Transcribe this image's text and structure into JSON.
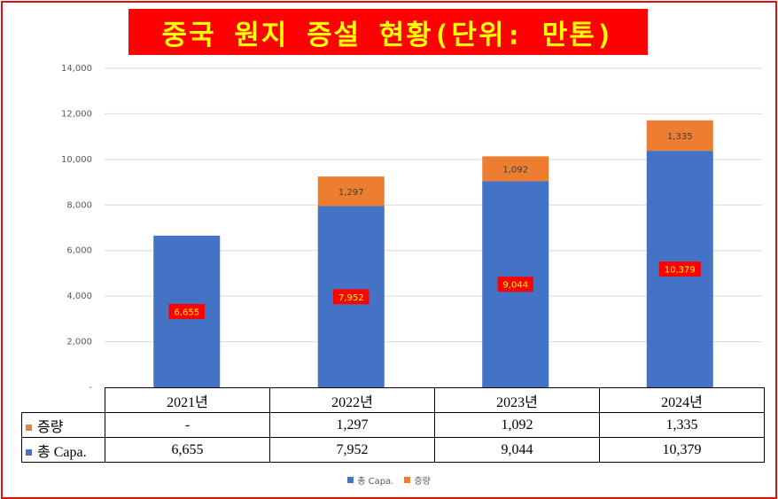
{
  "title": "중국 원지 증설 현황(단위: 만톤)",
  "colors": {
    "total": "#4472c4",
    "increase": "#ed7d31",
    "label_box": "#ff0000",
    "title_bg": "#ff0000",
    "title_text": "#ffff00"
  },
  "chart_data": {
    "type": "bar",
    "stacked": true,
    "title": "중국 원지 증설 현황(단위: 만톤)",
    "xlabel": "",
    "ylabel": "",
    "ylim": [
      0,
      14000
    ],
    "yticks": [
      "-",
      "2,000",
      "4,000",
      "6,000",
      "8,000",
      "10,000",
      "12,000",
      "14,000"
    ],
    "categories": [
      "2021년",
      "2022년",
      "2023년",
      "2024년"
    ],
    "series": [
      {
        "name": "총 Capa.",
        "values": [
          6655,
          7952,
          9044,
          10379
        ],
        "labels": [
          "6,655",
          "7,952",
          "9,044",
          "10,379"
        ]
      },
      {
        "name": "증량",
        "values": [
          0,
          1297,
          1092,
          1335
        ],
        "labels": [
          "-",
          "1,297",
          "1,092",
          "1,335"
        ]
      }
    ],
    "grid": true,
    "legend": "bottom"
  },
  "table": {
    "rows": [
      {
        "name": "증량",
        "cells": [
          "-",
          "1,297",
          "1,092",
          "1,335"
        ]
      },
      {
        "name": "총 Capa.",
        "cells": [
          "6,655",
          "7,952",
          "9,044",
          "10,379"
        ]
      }
    ]
  },
  "legend": [
    {
      "name": "총 Capa.",
      "color": "#4472c4"
    },
    {
      "name": "증량",
      "color": "#ed7d31"
    }
  ]
}
